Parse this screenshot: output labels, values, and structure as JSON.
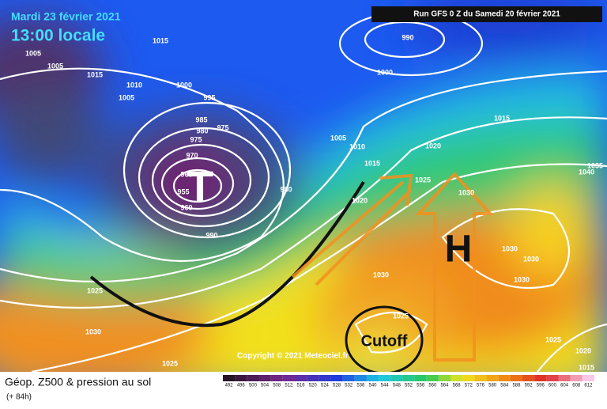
{
  "header": {
    "date": "Mardi 23 février 2021",
    "time": "13:00 locale",
    "run": "Run GFS 0 Z du Samedi 20 février 2021"
  },
  "map": {
    "low": "T",
    "high": "H",
    "cutoff": "Cutoff",
    "copyright": "Copyright © 2021 Meteociel.fr",
    "isobar_labels": [
      1015,
      1005,
      1005,
      1015,
      1010,
      1000,
      1005,
      995,
      985,
      980,
      975,
      975,
      970,
      965,
      955,
      960,
      990,
      980,
      1005,
      1010,
      1015,
      1020,
      990,
      1000,
      1015,
      1020,
      1025,
      1030,
      1035,
      1040,
      1030,
      1030,
      1030,
      1030,
      1025,
      1030,
      1025,
      1025,
      1025,
      1020,
      1015
    ]
  },
  "footer": {
    "title": "Géop. Z500 & pression au sol",
    "lead": "(+ 84h)",
    "scale": [
      492,
      496,
      500,
      504,
      508,
      512,
      516,
      520,
      524,
      528,
      532,
      536,
      540,
      544,
      548,
      552,
      556,
      560,
      564,
      568,
      572,
      576,
      580,
      584,
      588,
      592,
      596,
      600,
      604,
      608,
      612
    ]
  }
}
